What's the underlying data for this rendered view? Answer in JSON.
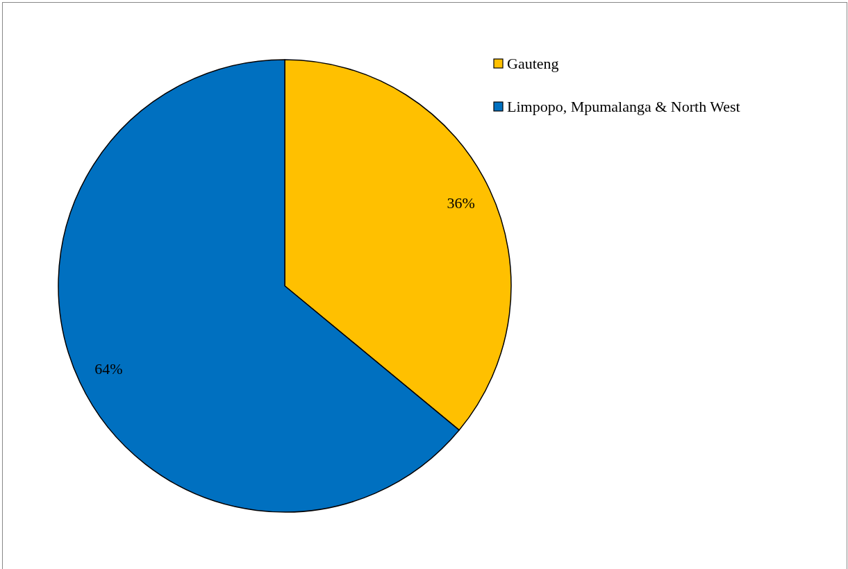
{
  "chart_data": {
    "type": "pie",
    "categories": [
      "Gauteng",
      "Limpopo, Mpumalanga & North West"
    ],
    "values": [
      36,
      64
    ],
    "colors": [
      "#ffc000",
      "#0070c0"
    ],
    "value_labels": [
      "36%",
      "64%"
    ],
    "legend": "top right"
  }
}
